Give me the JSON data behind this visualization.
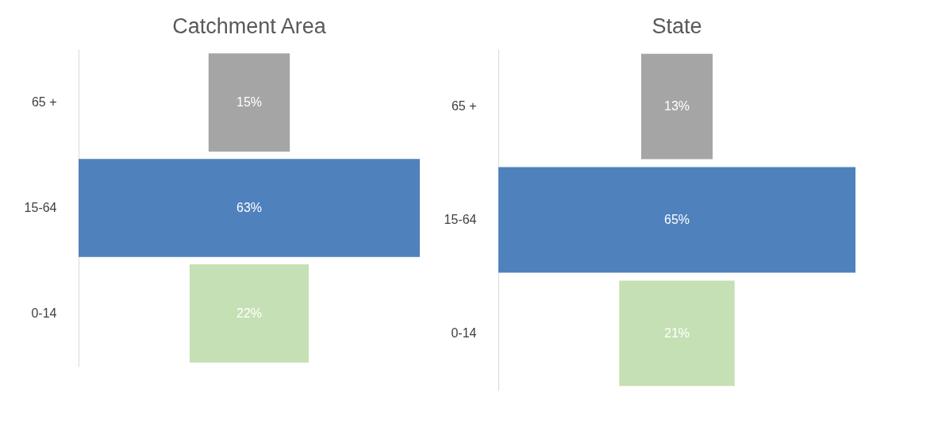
{
  "chart_data": [
    {
      "type": "other",
      "title": "Catchment Area",
      "categories": [
        "65 +",
        "15-64",
        "0-14"
      ],
      "values": [
        15,
        63,
        22
      ],
      "colors": [
        "#a5a5a5",
        "#4f81bd",
        "#c5e0b4"
      ],
      "value_labels": [
        "15%",
        "63%",
        "22%"
      ]
    },
    {
      "type": "other",
      "title": "State",
      "categories": [
        "65 +",
        "15-64",
        "0-14"
      ],
      "values": [
        13,
        65,
        21
      ],
      "colors": [
        "#a5a5a5",
        "#4f81bd",
        "#c5e0b4"
      ],
      "value_labels": [
        "13%",
        "65%",
        "21%"
      ]
    }
  ]
}
